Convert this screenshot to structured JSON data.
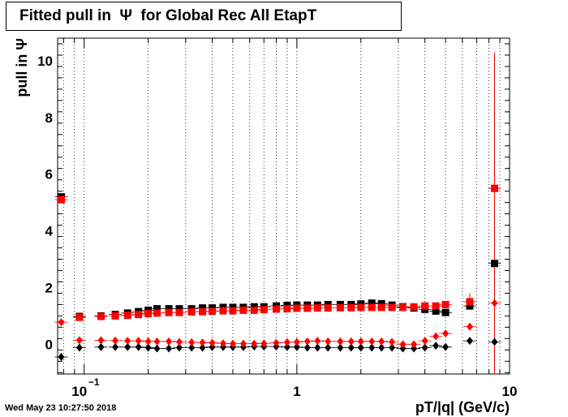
{
  "title": "Fitted pull in  Ψ  for Global Rec All EtapT",
  "timestamp": "Wed May 23 10:27:50 2018",
  "chart_data": {
    "type": "scatter",
    "title": "Fitted pull in  Ψ  for Global Rec All EtapT",
    "xlabel": "pT/|q| (GeV/c)",
    "ylabel": "pull in  Ψ",
    "xscale": "log",
    "xlim": [
      0.075,
      10
    ],
    "ylim": [
      -1.05,
      10.8
    ],
    "grid": true,
    "x_ticks": [
      {
        "value": 0.1,
        "label": "10",
        "sup": "−1"
      },
      {
        "value": 1,
        "label": "1"
      },
      {
        "value": 10,
        "label": "10"
      }
    ],
    "y_ticks": [
      {
        "value": 0,
        "label": "0"
      },
      {
        "value": 2,
        "label": "2"
      },
      {
        "value": 4,
        "label": "4"
      },
      {
        "value": 6,
        "label": "6"
      },
      {
        "value": 8,
        "label": "8"
      },
      {
        "value": 10,
        "label": "10"
      }
    ],
    "colors": {
      "black": "#000000",
      "red": "#ff0000"
    },
    "series": [
      {
        "marker": "square",
        "color": "#000000",
        "points": [
          [
            0.078,
            5.2
          ],
          [
            0.095,
            0.98
          ],
          [
            0.12,
            1.0
          ],
          [
            0.14,
            1.05
          ],
          [
            0.16,
            1.1
          ],
          [
            0.18,
            1.15
          ],
          [
            0.2,
            1.2
          ],
          [
            0.22,
            1.25
          ],
          [
            0.25,
            1.25
          ],
          [
            0.28,
            1.25
          ],
          [
            0.32,
            1.25
          ],
          [
            0.36,
            1.28
          ],
          [
            0.4,
            1.28
          ],
          [
            0.45,
            1.3
          ],
          [
            0.5,
            1.3
          ],
          [
            0.56,
            1.3
          ],
          [
            0.63,
            1.32
          ],
          [
            0.7,
            1.32
          ],
          [
            0.8,
            1.35
          ],
          [
            0.9,
            1.37
          ],
          [
            1.0,
            1.38
          ],
          [
            1.12,
            1.38
          ],
          [
            1.25,
            1.38
          ],
          [
            1.4,
            1.4
          ],
          [
            1.6,
            1.4
          ],
          [
            1.8,
            1.4
          ],
          [
            2.0,
            1.42
          ],
          [
            2.25,
            1.45
          ],
          [
            2.5,
            1.43
          ],
          [
            2.8,
            1.38
          ],
          [
            3.15,
            1.32
          ],
          [
            3.55,
            1.28
          ],
          [
            4.0,
            1.23
          ],
          [
            4.5,
            1.17
          ],
          [
            5.0,
            1.12
          ],
          [
            6.5,
            1.35
          ],
          [
            8.5,
            2.85
          ]
        ]
      },
      {
        "marker": "square",
        "color": "#ff0000",
        "points": [
          [
            0.078,
            5.1
          ],
          [
            0.095,
            0.95
          ],
          [
            0.12,
            0.98
          ],
          [
            0.14,
            1.0
          ],
          [
            0.16,
            1.02
          ],
          [
            0.18,
            1.05
          ],
          [
            0.2,
            1.08
          ],
          [
            0.22,
            1.1
          ],
          [
            0.25,
            1.12
          ],
          [
            0.28,
            1.12
          ],
          [
            0.32,
            1.14
          ],
          [
            0.36,
            1.15
          ],
          [
            0.4,
            1.16
          ],
          [
            0.45,
            1.18
          ],
          [
            0.5,
            1.18
          ],
          [
            0.56,
            1.2
          ],
          [
            0.63,
            1.2
          ],
          [
            0.7,
            1.22
          ],
          [
            0.8,
            1.24
          ],
          [
            0.9,
            1.25
          ],
          [
            1.0,
            1.27
          ],
          [
            1.12,
            1.27
          ],
          [
            1.25,
            1.28
          ],
          [
            1.4,
            1.28
          ],
          [
            1.6,
            1.29
          ],
          [
            1.8,
            1.29
          ],
          [
            2.0,
            1.3
          ],
          [
            2.25,
            1.3
          ],
          [
            2.5,
            1.3
          ],
          [
            2.8,
            1.3
          ],
          [
            3.15,
            1.3
          ],
          [
            3.55,
            1.32
          ],
          [
            4.0,
            1.35
          ],
          [
            4.5,
            1.35
          ],
          [
            5.0,
            1.4
          ],
          [
            6.5,
            1.5
          ],
          [
            8.5,
            5.5
          ]
        ]
      },
      {
        "marker": "diamond",
        "color": "#000000",
        "points": [
          [
            0.078,
            -0.45
          ],
          [
            0.095,
            -0.12
          ],
          [
            0.12,
            -0.1
          ],
          [
            0.14,
            -0.1
          ],
          [
            0.16,
            -0.1
          ],
          [
            0.18,
            -0.1
          ],
          [
            0.2,
            -0.12
          ],
          [
            0.22,
            -0.15
          ],
          [
            0.25,
            -0.15
          ],
          [
            0.28,
            -0.12
          ],
          [
            0.32,
            -0.12
          ],
          [
            0.36,
            -0.12
          ],
          [
            0.4,
            -0.1
          ],
          [
            0.45,
            -0.1
          ],
          [
            0.5,
            -0.1
          ],
          [
            0.56,
            -0.1
          ],
          [
            0.63,
            -0.08
          ],
          [
            0.7,
            -0.08
          ],
          [
            0.8,
            -0.08
          ],
          [
            0.9,
            -0.1
          ],
          [
            1.0,
            -0.1
          ],
          [
            1.12,
            -0.12
          ],
          [
            1.25,
            -0.12
          ],
          [
            1.4,
            -0.12
          ],
          [
            1.6,
            -0.12
          ],
          [
            1.8,
            -0.12
          ],
          [
            2.0,
            -0.12
          ],
          [
            2.25,
            -0.12
          ],
          [
            2.5,
            -0.12
          ],
          [
            2.8,
            -0.12
          ],
          [
            3.15,
            -0.15
          ],
          [
            3.55,
            -0.15
          ],
          [
            4.0,
            -0.12
          ],
          [
            4.5,
            -0.05
          ],
          [
            5.0,
            -0.1
          ],
          [
            6.5,
            0.12
          ],
          [
            8.5,
            0.08
          ]
        ]
      },
      {
        "marker": "diamond",
        "color": "#ff0000",
        "points": [
          [
            0.078,
            0.78
          ],
          [
            0.095,
            0.14
          ],
          [
            0.12,
            0.14
          ],
          [
            0.14,
            0.13
          ],
          [
            0.16,
            0.12
          ],
          [
            0.18,
            0.12
          ],
          [
            0.2,
            0.1
          ],
          [
            0.22,
            0.1
          ],
          [
            0.25,
            0.1
          ],
          [
            0.28,
            0.08
          ],
          [
            0.32,
            0.07
          ],
          [
            0.36,
            0.06
          ],
          [
            0.4,
            0.05
          ],
          [
            0.45,
            0.03
          ],
          [
            0.5,
            0.02
          ],
          [
            0.56,
            0.02
          ],
          [
            0.63,
            0.02
          ],
          [
            0.7,
            0.03
          ],
          [
            0.8,
            0.05
          ],
          [
            0.9,
            0.07
          ],
          [
            1.0,
            0.08
          ],
          [
            1.12,
            0.1
          ],
          [
            1.25,
            0.12
          ],
          [
            1.4,
            0.1
          ],
          [
            1.6,
            0.1
          ],
          [
            1.8,
            0.1
          ],
          [
            2.0,
            0.1
          ],
          [
            2.25,
            0.1
          ],
          [
            2.5,
            0.1
          ],
          [
            2.8,
            0.08
          ],
          [
            3.15,
            0.0
          ],
          [
            3.55,
            0.0
          ],
          [
            4.0,
            0.12
          ],
          [
            4.5,
            0.28
          ],
          [
            5.0,
            0.38
          ],
          [
            6.5,
            0.62
          ],
          [
            8.5,
            1.45
          ]
        ]
      }
    ],
    "error_bars": [
      {
        "x": 8.5,
        "y_low": -1.05,
        "y_high": 10.3,
        "color": "#ff0000"
      },
      {
        "x": 6.5,
        "y_low": 1.25,
        "y_high": 1.8,
        "color": "#ff0000"
      }
    ]
  }
}
